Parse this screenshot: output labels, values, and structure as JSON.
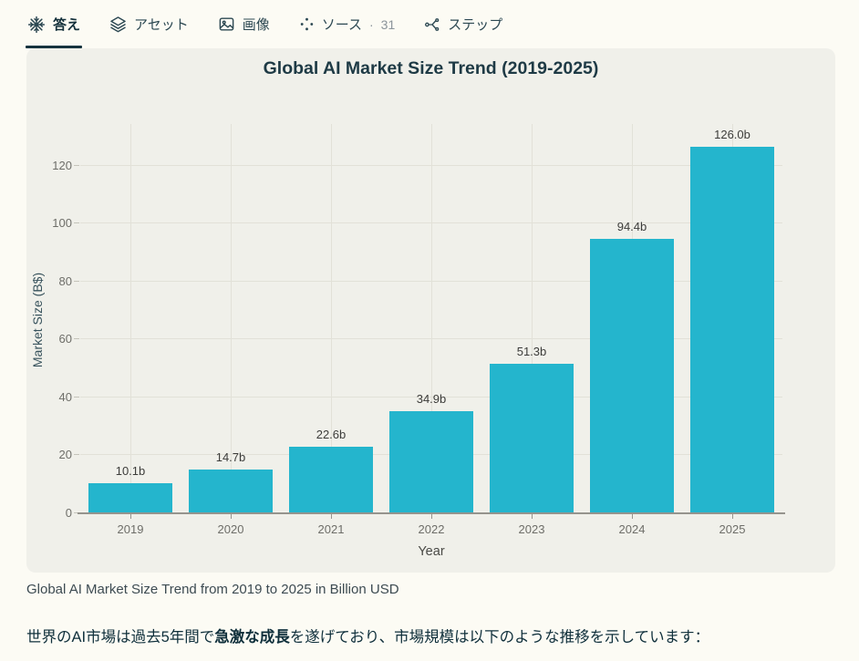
{
  "tabs": [
    {
      "label": "答え",
      "icon": "genspark-logo-icon",
      "active": true
    },
    {
      "label": "アセット",
      "icon": "layers-icon",
      "active": false
    },
    {
      "label": "画像",
      "icon": "image-icon",
      "active": false
    },
    {
      "label": "ソース",
      "separator": "·",
      "count": "31",
      "icon": "source-dots-icon",
      "active": false
    },
    {
      "label": "ステップ",
      "icon": "steps-branch-icon",
      "active": false
    }
  ],
  "chart_data": {
    "type": "bar",
    "title": "Global AI Market Size Trend (2019-2025)",
    "categories": [
      "2019",
      "2020",
      "2021",
      "2022",
      "2023",
      "2024",
      "2025"
    ],
    "values": [
      10.1,
      14.7,
      22.6,
      34.9,
      51.3,
      94.4,
      126.0
    ],
    "bar_labels": [
      "10.1b",
      "14.7b",
      "22.6b",
      "34.9b",
      "51.3b",
      "94.4b",
      "126.0b"
    ],
    "xlabel": "Year",
    "ylabel": "Market Size (B$)",
    "ylim": [
      0,
      130
    ],
    "yticks": [
      0,
      20,
      40,
      60,
      80,
      100,
      120
    ],
    "grid": true,
    "legend": "none",
    "bar_color": "#24b5cd"
  },
  "caption": "Global AI Market Size Trend from 2019 to 2025 in Billion USD",
  "paragraph": {
    "prefix": "世界のAI市場は過去5年間で",
    "bold": "急激な成長",
    "suffix": "を遂げており、市場規模は以下のような推移を示しています："
  },
  "colors": {
    "page_bg": "#fcfbf4",
    "card_bg": "#f0f0ea",
    "bar": "#24b5cd",
    "accent_underline": "#16333e",
    "title_ink": "#1e3a45"
  }
}
